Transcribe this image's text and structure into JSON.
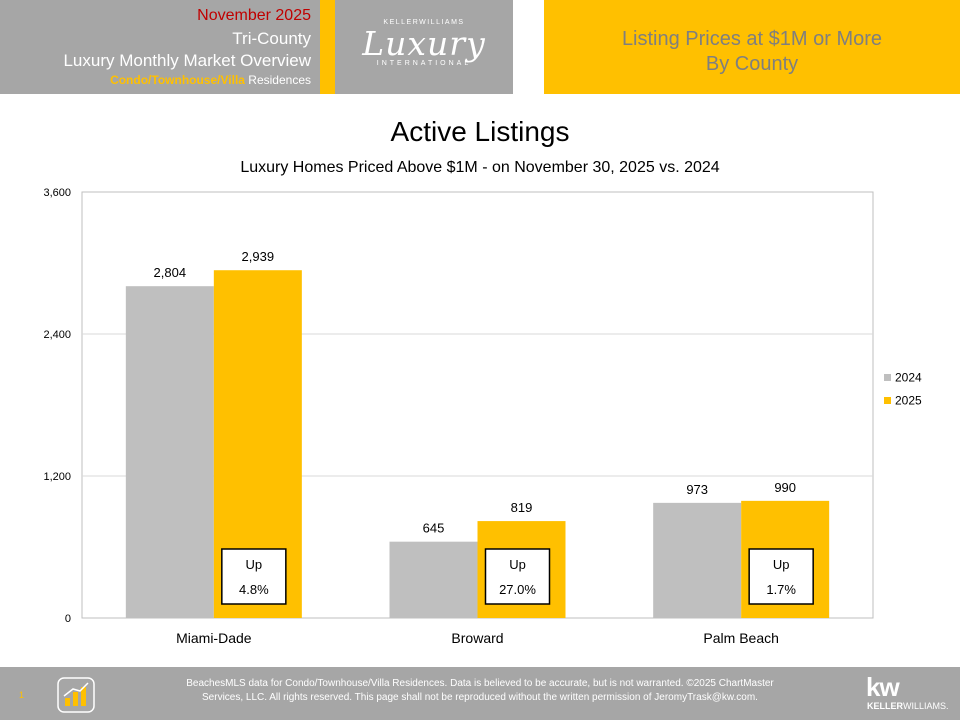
{
  "header": {
    "date": "November 2025",
    "region": "Tri-County",
    "report": "Luxury Monthly Market Overview",
    "segment_highlight": "Condo/Townhouse/Villa",
    "segment_rest": " Residences",
    "logo_top": "KELLERWILLIAMS",
    "logo_main": "Luxury",
    "logo_bottom": "INTERNATIONAL",
    "right_line1": "Listing Prices at $1M or More",
    "right_line2": "By County"
  },
  "colors": {
    "series_2024": "#bfbfbf",
    "series_2025": "#ffc000",
    "header_gray": "#a6a6a6",
    "accent_red": "#c00000"
  },
  "chart_data": {
    "type": "bar",
    "title": "Active Listings",
    "subtitle": "Luxury Homes Priced Above $1M - on November 30,  2025 vs. 2024",
    "categories": [
      "Miami-Dade",
      "Broward",
      "Palm Beach"
    ],
    "series": [
      {
        "name": "2024",
        "values": [
          2804,
          645,
          973
        ],
        "labels": [
          "2,804",
          "645",
          "973"
        ]
      },
      {
        "name": "2025",
        "values": [
          2939,
          819,
          990
        ],
        "labels": [
          "2,939",
          "819",
          "990"
        ]
      }
    ],
    "ylim": [
      0,
      3600
    ],
    "yticks": [
      0,
      1200,
      2400,
      3600
    ],
    "ytick_labels": [
      "0",
      "1,200",
      "2,400",
      "3,600"
    ],
    "grid": true,
    "legend": "right",
    "annotations": [
      {
        "direction": "Up",
        "pct": "4.8%"
      },
      {
        "direction": "Up",
        "pct": "27.0%"
      },
      {
        "direction": "Up",
        "pct": "1.7%"
      }
    ]
  },
  "footer": {
    "page_number": "1",
    "disclaimer_line1": "BeachesMLS data for Condo/Townhouse/Villa Residences.  Data is believed to be accurate, but is not warranted.   ©2025  ChartMaster",
    "disclaimer_line2": "Services, LLC.  All rights reserved. This page shall not be reproduced without the written permission of JeromyTrask@kw.com.",
    "brand_mark": "kw",
    "brand_name_bold": "KELLER",
    "brand_name_rest": "WILLIAMS."
  }
}
